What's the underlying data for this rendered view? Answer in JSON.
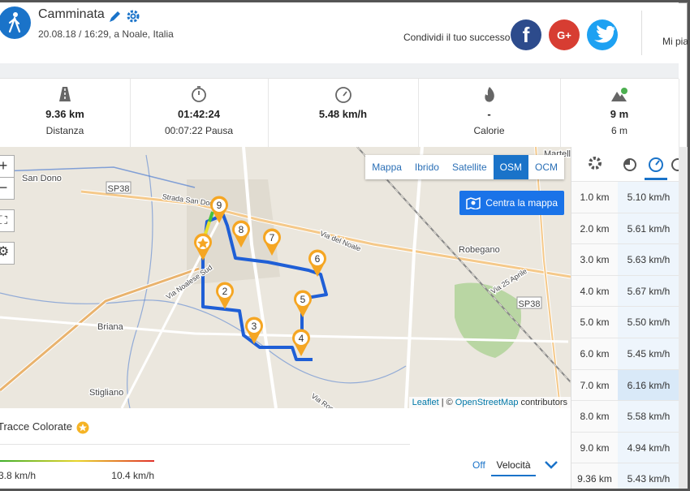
{
  "header": {
    "title": "Camminata",
    "subtitle": "20.08.18 / 16:29, a Noale, Italia",
    "share_text": "Condividi il tuo successo",
    "like": "Mi pia"
  },
  "stats": [
    {
      "value": "9.36 km",
      "label": "Distanza"
    },
    {
      "value": "01:42:24",
      "label": "00:07:22 Pausa"
    },
    {
      "value": "5.48 km/h"
    },
    {
      "value": "-",
      "label": "Calorie"
    },
    {
      "value": "9 m",
      "label": "6 m"
    }
  ],
  "map": {
    "layers": [
      "Mappa",
      "Ibrido",
      "Satellite",
      "OSM",
      "OCM"
    ],
    "active_layer": 3,
    "center_button": "Centra la mappa",
    "zoom": [
      "+",
      "−"
    ],
    "places": [
      "San Dono",
      "SP38",
      "Strada San Dono",
      "Robegano",
      "Briana",
      "Stigliano",
      "Via Noalese Sud",
      "Via del Noale",
      "Martello",
      "SP38",
      "Via 25 Aprile",
      "Via Roma"
    ],
    "markers": [
      "2",
      "3",
      "4",
      "5",
      "6",
      "7",
      "8",
      "9"
    ],
    "attribution": {
      "leaflet": "Leaflet",
      "separator": "| ©",
      "osm": "OpenStreetMap",
      "suffix": "contributors"
    }
  },
  "splits": {
    "rows": [
      [
        "1.0 km",
        "5.10 km/h"
      ],
      [
        "2.0 km",
        "5.61 km/h"
      ],
      [
        "3.0 km",
        "5.63 km/h"
      ],
      [
        "4.0 km",
        "5.67 km/h"
      ],
      [
        "5.0 km",
        "5.50 km/h"
      ],
      [
        "6.0 km",
        "5.45 km/h"
      ],
      [
        "7.0 km",
        "6.16 km/h"
      ],
      [
        "8.0 km",
        "5.58 km/h"
      ],
      [
        "9.0 km",
        "4.94 km/h"
      ],
      [
        "9.36 km",
        "5.43 km/h"
      ]
    ],
    "highlighted_row": 6
  },
  "color_tracks": {
    "title": "Tracce Colorate",
    "min": "3.8 km/h",
    "max": "10.4 km/h",
    "off": "Off",
    "mode": "Velocità"
  }
}
